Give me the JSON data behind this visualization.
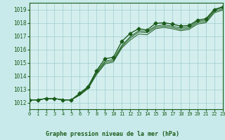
{
  "title": "Graphe pression niveau de la mer (hPa)",
  "bg_color": "#c8eaea",
  "plot_bg_color": "#d4eeee",
  "line_color": "#1a5c1a",
  "grid_color": "#9ecece",
  "text_color": "#1a5c1a",
  "bottom_bar_color": "#2a7a2a",
  "xlim": [
    0,
    23
  ],
  "ylim": [
    1011.5,
    1019.5
  ],
  "xticks": [
    0,
    1,
    2,
    3,
    4,
    5,
    6,
    7,
    8,
    9,
    10,
    11,
    12,
    13,
    14,
    15,
    16,
    17,
    18,
    19,
    20,
    21,
    22,
    23
  ],
  "yticks": [
    1012,
    1013,
    1014,
    1015,
    1016,
    1017,
    1018,
    1019
  ],
  "main_series": [
    1012.2,
    1012.2,
    1012.3,
    1012.3,
    1012.2,
    1012.2,
    1012.7,
    1013.2,
    1014.4,
    1015.3,
    1015.4,
    1016.6,
    1017.2,
    1017.55,
    1017.45,
    1017.95,
    1018.0,
    1017.9,
    1017.75,
    1017.8,
    1018.2,
    1018.3,
    1019.0,
    1019.2
  ],
  "thin_series": [
    [
      1012.2,
      1012.2,
      1012.3,
      1012.3,
      1012.2,
      1012.2,
      1012.55,
      1013.05,
      1014.1,
      1014.9,
      1015.05,
      1016.1,
      1016.7,
      1017.15,
      1017.1,
      1017.55,
      1017.65,
      1017.55,
      1017.4,
      1017.5,
      1017.9,
      1018.0,
      1018.75,
      1018.95
    ],
    [
      1012.2,
      1012.2,
      1012.3,
      1012.3,
      1012.2,
      1012.2,
      1012.6,
      1013.1,
      1014.2,
      1015.0,
      1015.15,
      1016.2,
      1016.85,
      1017.3,
      1017.25,
      1017.65,
      1017.75,
      1017.65,
      1017.5,
      1017.6,
      1018.0,
      1018.1,
      1018.85,
      1019.05
    ],
    [
      1012.2,
      1012.2,
      1012.3,
      1012.3,
      1012.2,
      1012.2,
      1012.65,
      1013.15,
      1014.3,
      1015.1,
      1015.25,
      1016.3,
      1016.95,
      1017.4,
      1017.35,
      1017.75,
      1017.85,
      1017.75,
      1017.6,
      1017.7,
      1018.1,
      1018.2,
      1018.95,
      1019.15
    ]
  ],
  "marker": "D",
  "markersize": 2.5,
  "linewidth": 1.0,
  "thin_linewidth": 0.7
}
